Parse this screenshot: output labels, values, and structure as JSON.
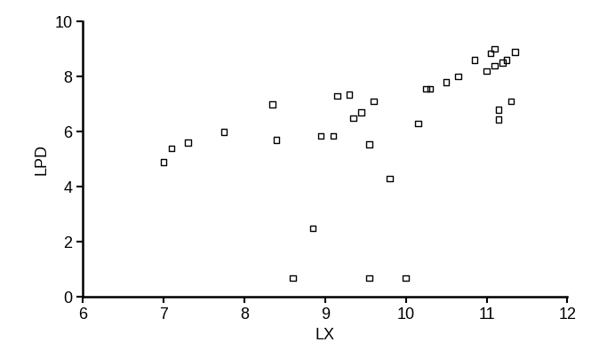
{
  "chart_data": {
    "type": "scatter",
    "x_label": "LX",
    "y_label": "LPD",
    "x": [
      7.0,
      7.1,
      7.3,
      7.75,
      8.35,
      8.4,
      8.6,
      8.85,
      8.95,
      9.1,
      9.15,
      9.3,
      9.35,
      9.45,
      9.55,
      9.55,
      9.6,
      9.8,
      10.0,
      10.15,
      10.25,
      10.3,
      10.5,
      10.65,
      10.85,
      11.0,
      11.05,
      11.1,
      11.1,
      11.15,
      11.15,
      11.2,
      11.25,
      11.3,
      11.35
    ],
    "values": [
      4.9,
      5.4,
      5.6,
      6.0,
      7.0,
      5.7,
      0.7,
      2.5,
      5.85,
      5.85,
      7.3,
      7.35,
      6.5,
      6.7,
      5.55,
      0.7,
      7.1,
      4.3,
      0.7,
      6.3,
      7.55,
      7.55,
      7.8,
      8.0,
      8.6,
      8.2,
      8.85,
      9.0,
      8.4,
      6.8,
      6.45,
      8.5,
      8.6,
      7.1,
      8.9
    ],
    "color": "#000000",
    "marker": "square",
    "xlim": [
      6,
      12
    ],
    "xticks": [
      6,
      7,
      8,
      9,
      10,
      11,
      12
    ],
    "ylim": [
      0,
      10
    ],
    "yticks": [
      0,
      2,
      4,
      6,
      8,
      10
    ],
    "grid": false
  }
}
